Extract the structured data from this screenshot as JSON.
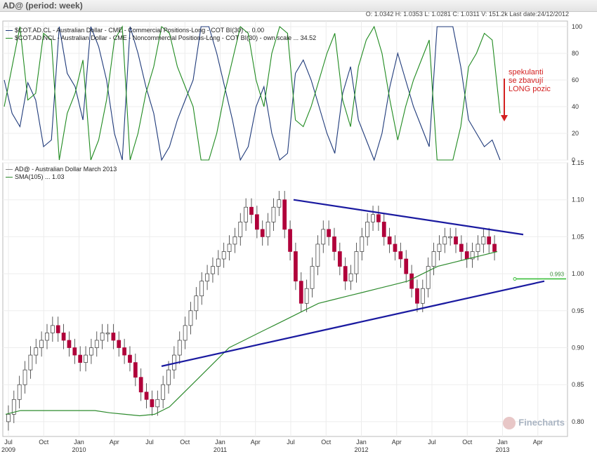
{
  "header": {
    "title": "AD@  (period: week)",
    "ohlc": "O: 1.0342   H: 1.0353   L: 1.0281   C: 1.0311   V: 151.2k   Last date:24/12/2012"
  },
  "top_panel": {
    "legend": [
      "$COT.AD.CL - Australian Dollar - CME - Commercial Positions-Long - COT BI(30) ... 0.00",
      "$COT.AD.NCL - Australian Dollar - CME - Noncommercial Positions-Long - COT BI(30) - own scale ... 34.52"
    ],
    "annotation": [
      "spekulanti",
      "se zbavují",
      "LONG pozic"
    ]
  },
  "main_panel": {
    "legend": [
      "AD@ - Australian Dollar March 2013",
      "SMA(105) ... 1.03"
    ],
    "price_label": "0.993"
  },
  "brand": "Finecharts",
  "colors": {
    "commercial": "#1f3a7a",
    "noncommercial": "#1f8a1f",
    "sma": "#2e8b2e",
    "trendline": "#1a1aa0",
    "up": "#ffffff",
    "down": "#b0003a",
    "arrow": "#d32020"
  },
  "chart_data": [
    {
      "type": "line",
      "title": "",
      "x_ticks": [
        "Jul",
        "Oct",
        "Jan",
        "Apr",
        "Jul",
        "Oct",
        "Jan",
        "Apr",
        "Jul",
        "Oct",
        "Jan",
        "Apr",
        "Jul",
        "Oct",
        "Jan",
        "Apr"
      ],
      "ylim": [
        0,
        100
      ],
      "y_ticks": [
        0,
        20,
        40,
        60,
        80,
        100
      ],
      "series": [
        {
          "name": "$COT.AD.CL - Australian Dollar - CME - Commercial Positions-Long - COT BI(30)",
          "values": [
            60,
            35,
            25,
            58,
            45,
            10,
            15,
            100,
            65,
            55,
            30,
            100,
            85,
            60,
            20,
            0,
            100,
            80,
            55,
            35,
            0,
            10,
            30,
            45,
            60,
            100,
            100,
            80,
            55,
            30,
            0,
            10,
            40,
            55,
            20,
            0,
            5,
            65,
            75,
            60,
            40,
            20,
            5,
            50,
            70,
            30,
            15,
            0,
            20,
            55,
            80,
            60,
            40,
            25,
            10,
            100,
            100,
            100,
            70,
            30,
            20,
            10,
            15,
            0
          ]
        },
        {
          "name": "$COT.AD.NCL - Australian Dollar - CME - Noncommercial Positions-Long - COT BI(30) - own scale",
          "values": [
            40,
            70,
            100,
            45,
            50,
            95,
            90,
            0,
            35,
            50,
            75,
            0,
            15,
            45,
            90,
            100,
            0,
            20,
            50,
            70,
            100,
            95,
            70,
            55,
            40,
            0,
            0,
            20,
            50,
            75,
            100,
            95,
            60,
            40,
            80,
            100,
            95,
            30,
            25,
            40,
            60,
            80,
            95,
            45,
            25,
            70,
            90,
            100,
            80,
            45,
            15,
            40,
            60,
            75,
            90,
            0,
            0,
            0,
            25,
            70,
            80,
            95,
            90,
            35
          ]
        }
      ]
    },
    {
      "type": "candlestick",
      "title": "AD@ - Australian Dollar March 2013",
      "x_ticks": [
        "Jul",
        "Oct",
        "Jan",
        "Apr",
        "Jul",
        "Oct",
        "Jan",
        "Apr",
        "Jul",
        "Oct",
        "Jan",
        "Apr",
        "Jul",
        "Oct",
        "Jan",
        "Apr"
      ],
      "x_year_labels": [
        "2009",
        "2010",
        "2011",
        "2012",
        "2013"
      ],
      "ylim": [
        0.78,
        1.15
      ],
      "y_ticks": [
        0.8,
        0.85,
        0.9,
        0.95,
        1.0,
        1.05,
        1.1,
        1.15
      ],
      "close": [
        0.81,
        0.83,
        0.85,
        0.87,
        0.89,
        0.9,
        0.91,
        0.92,
        0.93,
        0.92,
        0.91,
        0.9,
        0.89,
        0.88,
        0.89,
        0.9,
        0.91,
        0.92,
        0.92,
        0.91,
        0.9,
        0.89,
        0.88,
        0.86,
        0.84,
        0.83,
        0.82,
        0.83,
        0.85,
        0.87,
        0.89,
        0.91,
        0.93,
        0.95,
        0.97,
        0.99,
        1.0,
        1.01,
        1.02,
        1.03,
        1.04,
        1.05,
        1.07,
        1.09,
        1.08,
        1.06,
        1.05,
        1.07,
        1.09,
        1.1,
        1.06,
        1.03,
        0.99,
        0.96,
        0.98,
        1.01,
        1.04,
        1.06,
        1.05,
        1.03,
        1.01,
        0.99,
        1.0,
        1.03,
        1.05,
        1.07,
        1.08,
        1.07,
        1.05,
        1.04,
        1.03,
        1.02,
        1.0,
        0.98,
        0.96,
        0.98,
        1.01,
        1.03,
        1.04,
        1.05,
        1.05,
        1.04,
        1.03,
        1.02,
        1.03,
        1.04,
        1.05,
        1.04,
        1.03
      ],
      "sma": {
        "name": "SMA(105)",
        "last": 1.03,
        "values": [
          0.81,
          0.815,
          0.815,
          0.815,
          0.815,
          0.815,
          0.815,
          0.812,
          0.81,
          0.808,
          0.81,
          0.82,
          0.84,
          0.86,
          0.88,
          0.9,
          0.91,
          0.92,
          0.93,
          0.94,
          0.95,
          0.96,
          0.965,
          0.97,
          0.975,
          0.98,
          0.985,
          0.99,
          1.0,
          1.01,
          1.015,
          1.02,
          1.025,
          1.03
        ]
      },
      "trendlines": [
        {
          "from": [
            0.875,
            "2010-08"
          ],
          "to": [
            0.99,
            "2013-02"
          ]
        },
        {
          "from": [
            1.1,
            "2011-07"
          ],
          "to": [
            1.053,
            "2013-03"
          ]
        }
      ],
      "horizontal_level": 0.993
    }
  ]
}
